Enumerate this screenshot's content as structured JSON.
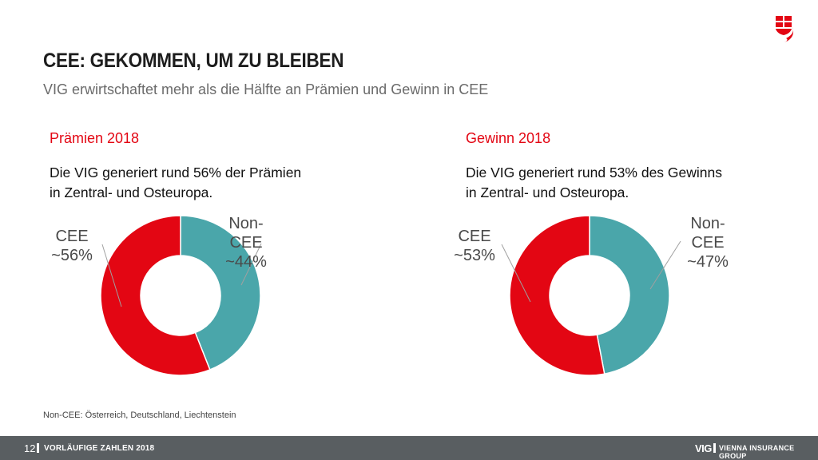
{
  "header": {
    "title": "CEE: GEKOMMEN, UM ZU BLEIBEN",
    "subtitle": "VIG erwirtschaftet mehr als die Hälfte an Prämien und Gewinn in CEE",
    "logo_icon": "vig-shield-logo-icon"
  },
  "colors": {
    "accent": "#e30613",
    "cee": "#e30613",
    "non_cee": "#4aa6aa",
    "footer_bg": "#595e61"
  },
  "sections": [
    {
      "heading": "Prämien 2018",
      "desc_line1": "Die VIG generiert rund 56% der Prämien",
      "desc_line2": "in Zentral- und Osteuropa."
    },
    {
      "heading": "Gewinn 2018",
      "desc_line1": "Die VIG generiert rund 53% des Gewinns",
      "desc_line2": "in Zentral- und Osteuropa."
    }
  ],
  "chart_data": [
    {
      "type": "pie",
      "title": "Prämien 2018",
      "donut": true,
      "categories": [
        "Non-CEE",
        "CEE"
      ],
      "values": [
        44,
        56
      ],
      "labels": [
        {
          "lines": [
            "Non-",
            "CEE",
            "~44%"
          ]
        },
        {
          "lines": [
            "CEE",
            "~56%"
          ]
        }
      ]
    },
    {
      "type": "pie",
      "title": "Gewinn 2018",
      "donut": true,
      "categories": [
        "Non-CEE",
        "CEE"
      ],
      "values": [
        47,
        53
      ],
      "labels": [
        {
          "lines": [
            "Non-",
            "CEE",
            "~47%"
          ]
        },
        {
          "lines": [
            "CEE",
            "~53%"
          ]
        }
      ]
    }
  ],
  "footnote": "Non-CEE: Österreich, Deutschland, Liechtenstein",
  "footer": {
    "page_number": "12",
    "left_text": "VORLÄUFIGE ZAHLEN 2018",
    "brand": "VIG",
    "brand_text": "VIENNA INSURANCE GROUP"
  }
}
